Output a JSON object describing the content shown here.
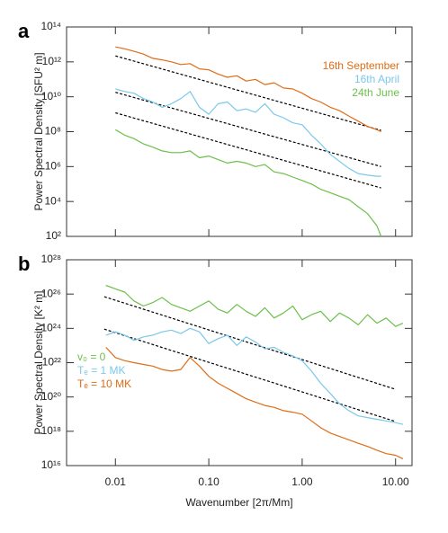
{
  "chart_data": [
    {
      "type": "line",
      "panel": "a",
      "ylabel": "Power Spectral Density [SFU² m]",
      "xscale": "log",
      "yscale": "log",
      "legend": "upper right",
      "xlim": [
        0.003,
        15
      ],
      "ylim": [
        100,
        100000000000000.0
      ],
      "xticks": [
        0.01,
        0.1,
        1,
        10
      ],
      "yticks": [
        {
          "value": 100,
          "label": "10²"
        },
        {
          "value": 10000,
          "label": "10⁴"
        },
        {
          "value": 1000000.0,
          "label": "10⁶"
        },
        {
          "value": 100000000.0,
          "label": "10⁸"
        },
        {
          "value": 10000000000.0,
          "label": "10¹⁰"
        },
        {
          "value": 1000000000000.0,
          "label": "10¹²"
        },
        {
          "value": 100000000000000.0,
          "label": "10¹⁴"
        }
      ],
      "x": [
        0.01,
        0.0126,
        0.0158,
        0.02,
        0.0251,
        0.0316,
        0.0398,
        0.0501,
        0.0631,
        0.0794,
        0.1,
        0.126,
        0.158,
        0.2,
        0.251,
        0.316,
        0.398,
        0.501,
        0.631,
        0.794,
        1,
        1.26,
        1.58,
        2,
        2.51,
        3.16,
        3.98,
        5.01,
        6.31,
        7
      ],
      "series": [
        {
          "name": "16th September",
          "color": "#e06c16",
          "values": [
            7200000000000.0,
            5600000000000.0,
            4000000000000.0,
            2800000000000.0,
            1600000000000.0,
            1300000000000.0,
            1000000000000.0,
            700000000000.0,
            790000000000.0,
            400000000000.0,
            350000000000.0,
            200000000000.0,
            130000000000.0,
            160000000000.0,
            79000000000.0,
            100000000000.0,
            50000000000.0,
            63000000000.0,
            32000000000.0,
            28000000000.0,
            16000000000.0,
            7900000000.0,
            5000000000.0,
            2500000000.0,
            1600000000.0,
            790000000.0,
            400000000.0,
            200000000.0,
            130000000.0,
            100000000.0
          ]
        },
        {
          "name": "16th April",
          "color": "#7ac8ec",
          "values": [
            28000000000.0,
            20000000000.0,
            16000000000.0,
            7900000000.0,
            5000000000.0,
            2500000000.0,
            4000000000.0,
            7900000000.0,
            20000000000.0,
            2500000000.0,
            1000000000.0,
            4000000000.0,
            5000000000.0,
            1600000000.0,
            2000000000.0,
            1300000000.0,
            4000000000.0,
            1000000000.0,
            630000000.0,
            320000000.0,
            250000000.0,
            63000000.0,
            20000000.0,
            5000000.0,
            2000000.0,
            790000.0,
            400000.0,
            320000.0,
            280000.0,
            280000.0
          ]
        },
        {
          "name": "24th June",
          "color": "#6cc04a",
          "values": [
            130000000.0,
            63000000.0,
            40000000.0,
            20000000.0,
            13000000.0,
            7900000.0,
            6300000.0,
            6300000.0,
            7900000.0,
            3200000.0,
            4000000.0,
            2500000.0,
            1600000.0,
            2000000.0,
            1600000.0,
            1000000.0,
            1300000.0,
            500000.0,
            400000.0,
            250000.0,
            160000.0,
            100000.0,
            50000.0,
            32000.0,
            20000.0,
            13000.0,
            5000,
            2000,
            400,
            100
          ]
        }
      ],
      "reference_lines": [
        {
          "color": "#000000",
          "x": [
            0.01,
            7
          ],
          "values": [
            2200000000000.0,
            120000000.0
          ]
        },
        {
          "color": "#000000",
          "x": [
            0.01,
            7
          ],
          "values": [
            18000000000.0,
            1000000.0
          ]
        },
        {
          "color": "#000000",
          "x": [
            0.01,
            7
          ],
          "values": [
            1200000000.0,
            60000
          ]
        }
      ]
    },
    {
      "type": "line",
      "panel": "b",
      "ylabel": "Power Spectral Density [K² m]",
      "xlabel": "Wavenumber [2π/Mm]",
      "xscale": "log",
      "yscale": "log",
      "legend": "lower left",
      "xlim": [
        0.003,
        15
      ],
      "ylim": [
        1e+16,
        1e+28
      ],
      "xticks": [
        0.01,
        {
          "value": 0.1,
          "label": "0.10"
        },
        {
          "value": 1,
          "label": "1.00"
        },
        {
          "value": 10,
          "label": "10.00"
        }
      ],
      "yticks": [
        {
          "value": 1e+16,
          "label": "10¹⁶"
        },
        {
          "value": 1e+18,
          "label": "10¹⁸"
        },
        {
          "value": 1e+20,
          "label": "10²⁰"
        },
        {
          "value": 1e+22,
          "label": "10²²"
        },
        {
          "value": 1e+24,
          "label": "10²⁴"
        },
        {
          "value": 1e+26,
          "label": "10²⁶"
        },
        {
          "value": 1e+28,
          "label": "10²⁸"
        }
      ],
      "x": [
        0.0079,
        0.01,
        0.0126,
        0.0158,
        0.02,
        0.0251,
        0.0316,
        0.0398,
        0.0501,
        0.0631,
        0.0794,
        0.1,
        0.126,
        0.158,
        0.2,
        0.251,
        0.316,
        0.398,
        0.501,
        0.631,
        0.794,
        1,
        1.26,
        1.58,
        2,
        2.51,
        3.16,
        3.98,
        5.01,
        6.31,
        7.94,
        10,
        12
      ],
      "series": [
        {
          "name": "v₀ = 0",
          "color": "#6cc04a",
          "values": [
            3.2e+26,
            2e+26,
            1.3e+26,
            4e+25,
            2e+25,
            3.2e+25,
            6.3e+25,
            2.5e+25,
            1.6e+25,
            1e+25,
            2e+25,
            4e+25,
            1.3e+25,
            7.9e+24,
            2.5e+25,
            1e+25,
            5e+24,
            1.6e+25,
            4e+24,
            7.9e+24,
            2e+25,
            3.2e+24,
            6.3e+24,
            1e+25,
            2.5e+24,
            7.9e+24,
            4e+24,
            1.6e+24,
            6.3e+24,
            2e+24,
            4e+24,
            1.3e+24,
            2e+24
          ]
        },
        {
          "name": "Tₑ = 1 MK",
          "color": "#7ac8ec",
          "values": [
            4e+23,
            6.3e+23,
            4e+23,
            2e+23,
            3.2e+23,
            4e+23,
            6.3e+23,
            7.9e+23,
            5e+23,
            1e+24,
            6.3e+23,
            1.3e+23,
            2.5e+23,
            4e+23,
            1e+23,
            3.2e+23,
            1.6e+23,
            6.3e+22,
            7.9e+22,
            4e+22,
            2.5e+22,
            1.3e+22,
            3.2e+21,
            6.3e+20,
            1.6e+20,
            4e+19,
            1.6e+19,
            7.9e+18,
            6.3e+18,
            5e+18,
            4e+18,
            3.2e+18,
            2.5e+18
          ]
        },
        {
          "name": "Tₑ = 10 MK",
          "color": "#e06c16",
          "values": [
            7.9e+22,
            2e+22,
            1.3e+22,
            1e+22,
            7.9e+21,
            6.3e+21,
            4e+21,
            3.2e+21,
            4e+21,
            2e+22,
            6.3e+21,
            1.6e+21,
            6.3e+20,
            3.2e+20,
            1.6e+20,
            7.9e+19,
            5e+19,
            3.2e+19,
            2.5e+19,
            1.6e+19,
            1.3e+19,
            1e+19,
            4e+18,
            1.6e+18,
            7.9e+17,
            5e+17,
            3.2e+17,
            2e+17,
            1.3e+17,
            7.9e+16,
            5e+16,
            4e+16,
            2.5e+16
          ]
        }
      ],
      "reference_lines": [
        {
          "color": "#000000",
          "x": [
            0.0076,
            10
          ],
          "values": [
            7e+25,
            2.8e+20
          ]
        },
        {
          "color": "#000000",
          "x": [
            0.0076,
            10
          ],
          "values": [
            9e+23,
            3.7e+18
          ]
        }
      ]
    }
  ]
}
